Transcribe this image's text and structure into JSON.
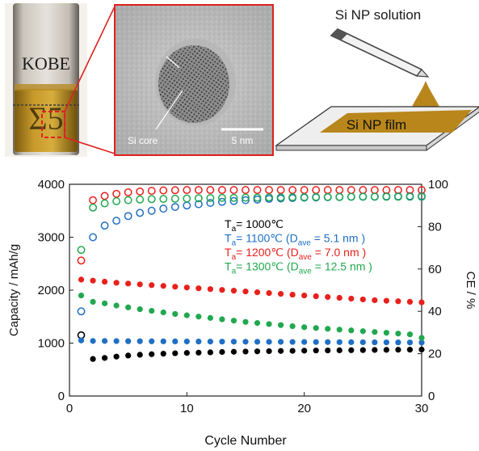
{
  "photo": {
    "vial_label": "KOBE"
  },
  "tem": {
    "core_label": "Si core",
    "scale_label": "5 nm"
  },
  "schematic": {
    "solution_label": "Si NP solution",
    "film_label": "Si NP film",
    "solution_color": "#b8861b",
    "film_color": "#b8861b"
  },
  "chart_data": {
    "type": "scatter",
    "xlabel": "Cycle Number",
    "ylabel": "Capacity / mAh/g",
    "y2label": "CE / %",
    "xlim": [
      0,
      30
    ],
    "ylim": [
      0,
      4000
    ],
    "y2lim": [
      0,
      100
    ],
    "xticks": [
      "0",
      "10",
      "20",
      "30"
    ],
    "yticks": [
      "0",
      "1000",
      "2000",
      "3000",
      "4000"
    ],
    "y2ticks": [
      "0",
      "20",
      "40",
      "60",
      "80",
      "100"
    ],
    "legend": [
      {
        "text": "T",
        "sub": "a",
        "rest": "= 1000℃",
        "dave": "",
        "close": "",
        "color": "#000000"
      },
      {
        "text": "T",
        "sub": "a",
        "rest": "= 1100℃ (D",
        "dave": "ave",
        "close": " = 5.1 nm )",
        "color": "#1f6fc5"
      },
      {
        "text": "T",
        "sub": "a",
        "rest": "= 1200℃ (D",
        "dave": "ave",
        "close": " = 7.0 nm )",
        "color": "#e8201c"
      },
      {
        "text": "T",
        "sub": "a",
        "rest": "= 1300℃ (D",
        "dave": "ave",
        "close": " = 12.5 nm )",
        "color": "#21a84f"
      }
    ],
    "series": [
      {
        "key": "t1000",
        "color": "#000000",
        "capacity": [
          1150,
          700,
          720,
          745,
          765,
          780,
          790,
          800,
          808,
          815,
          820,
          826,
          832,
          836,
          840,
          844,
          848,
          851,
          854,
          857,
          860,
          862,
          864,
          866,
          868,
          870,
          872,
          874,
          876,
          878
        ],
        "ce": null
      },
      {
        "key": "t1100",
        "color": "#1f6fc5",
        "capacity": [
          1050,
          1040,
          1040,
          1038,
          1036,
          1035,
          1034,
          1033,
          1032,
          1031,
          1030,
          1029,
          1028,
          1027,
          1026,
          1025,
          1024,
          1023,
          1022,
          1021,
          1020,
          1019,
          1018,
          1017,
          1016,
          1015,
          1014,
          1013,
          1012,
          1010
        ],
        "ce": [
          40,
          75,
          80.5,
          82.8,
          85,
          86.5,
          87.5,
          88.5,
          89.3,
          90,
          90.6,
          91.2,
          91.7,
          92.1,
          92.5,
          92.8,
          93.1,
          93.3,
          93.5,
          93.7,
          93.8,
          93.9,
          94,
          94.1,
          94.2,
          94.2,
          94.3,
          94.3,
          94.4,
          94.4
        ]
      },
      {
        "key": "t1200",
        "color": "#e8201c",
        "capacity": [
          2200,
          2180,
          2160,
          2140,
          2125,
          2110,
          2095,
          2080,
          2065,
          2050,
          2035,
          2020,
          2005,
          1990,
          1975,
          1960,
          1945,
          1930,
          1915,
          1900,
          1885,
          1870,
          1855,
          1840,
          1825,
          1810,
          1800,
          1790,
          1780,
          1770
        ],
        "ce": [
          64,
          92.5,
          94.5,
          95.5,
          96.2,
          96.6,
          96.9,
          97.1,
          97.2,
          97.3,
          97.3,
          97.3,
          97.3,
          97.3,
          97.3,
          97.3,
          97.3,
          97.3,
          97.3,
          97.3,
          97.3,
          97.3,
          97.3,
          97.3,
          97.3,
          97.3,
          97.3,
          97.3,
          97.3,
          97.3
        ]
      },
      {
        "key": "t1300",
        "color": "#21a84f",
        "capacity": [
          1900,
          1780,
          1750,
          1710,
          1675,
          1640,
          1610,
          1580,
          1550,
          1525,
          1500,
          1475,
          1450,
          1425,
          1400,
          1380,
          1360,
          1340,
          1320,
          1300,
          1285,
          1270,
          1255,
          1240,
          1225,
          1210,
          1195,
          1180,
          1165,
          1100
        ],
        "ce": [
          69,
          89,
          91,
          92,
          92.5,
          92.8,
          93,
          93.1,
          93.2,
          93.3,
          93.4,
          93.5,
          93.6,
          93.6,
          93.7,
          93.7,
          93.8,
          93.8,
          93.9,
          93.9,
          94,
          94,
          94,
          94.1,
          94.1,
          94.1,
          94.1,
          94.1,
          94.1,
          94.1
        ]
      }
    ]
  }
}
